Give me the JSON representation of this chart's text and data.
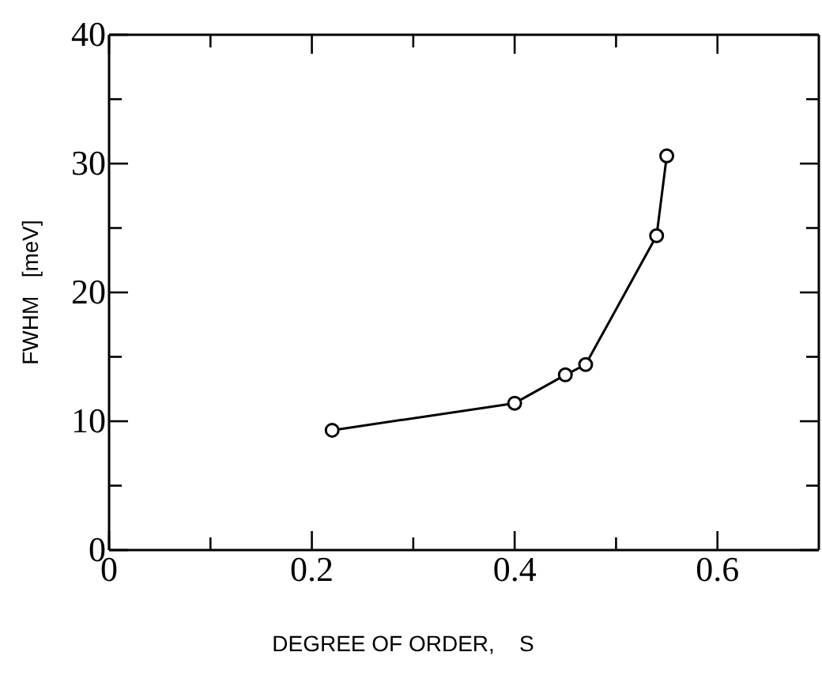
{
  "chart_data": {
    "type": "line",
    "xlabel": "DEGREE OF ORDER,    S",
    "ylabel": "FWHM   [meV]",
    "x": [
      0.22,
      0.4,
      0.45,
      0.47,
      0.54,
      0.55
    ],
    "series": [
      {
        "color": "#000000",
        "values": [
          9.3,
          11.4,
          13.6,
          14.4,
          24.4,
          30.6
        ]
      }
    ],
    "xlim": [
      0,
      0.7
    ],
    "ylim": [
      0,
      40
    ],
    "xticks": [
      0,
      {
        "value": 0.1,
        "label": null
      },
      0.2,
      {
        "value": 0.3,
        "label": null
      },
      0.4,
      {
        "value": 0.5,
        "label": null
      },
      0.6
    ],
    "yticks": [
      0,
      {
        "value": 5,
        "label": null
      },
      10,
      {
        "value": 15,
        "label": null
      },
      20,
      {
        "value": 25,
        "label": null
      },
      30,
      {
        "value": 35,
        "label": null
      },
      40
    ],
    "marker": "circle",
    "line_style": "solid",
    "grid": false
  }
}
